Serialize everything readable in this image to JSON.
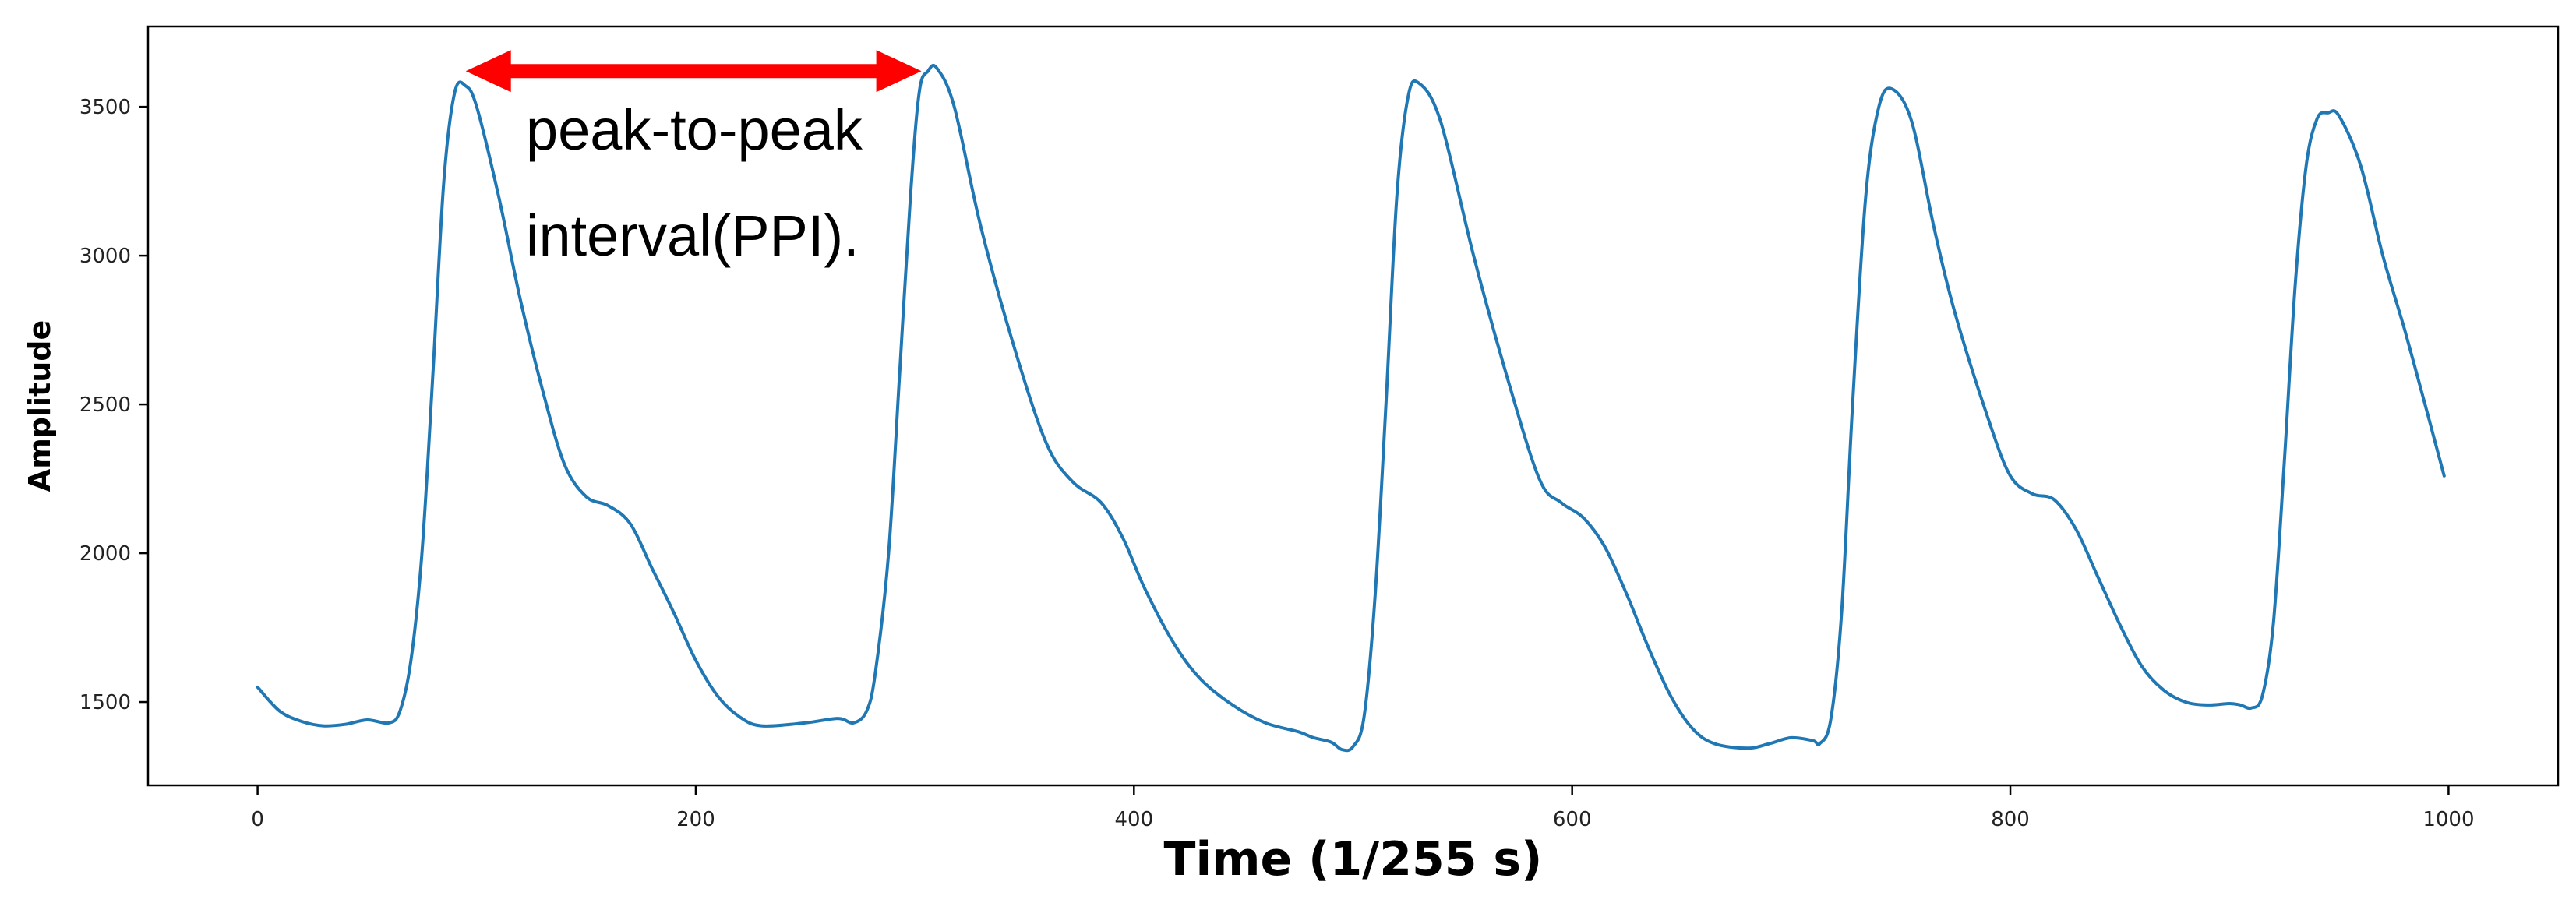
{
  "colors": {
    "series": "#1f77b4",
    "arrow": "#ff0000",
    "axes": "#000000",
    "background": "#ffffff"
  },
  "chart_data": {
    "type": "line",
    "title": "",
    "xlabel": "Time (1/255 s)",
    "ylabel": "Amplitude",
    "xlim": [
      -50,
      1050
    ],
    "ylim": [
      1220,
      3770
    ],
    "xticks": [
      0,
      200,
      400,
      600,
      800,
      1000
    ],
    "xtick_labels": [
      "0",
      "200",
      "400",
      "600",
      "800",
      "1000"
    ],
    "yticks": [
      1500,
      2000,
      2500,
      3000,
      3500
    ],
    "ytick_labels": [
      "1500",
      "2000",
      "2500",
      "3000",
      "3500"
    ],
    "grid": false,
    "legend": "none",
    "series": [
      {
        "points": [
          [
            0,
            1550
          ],
          [
            10,
            1470
          ],
          [
            20,
            1435
          ],
          [
            30,
            1420
          ],
          [
            40,
            1425
          ],
          [
            50,
            1440
          ],
          [
            60,
            1430
          ],
          [
            65,
            1470
          ],
          [
            70,
            1640
          ],
          [
            75,
            2000
          ],
          [
            80,
            2600
          ],
          [
            85,
            3250
          ],
          [
            90,
            3550
          ],
          [
            95,
            3570
          ],
          [
            100,
            3500
          ],
          [
            110,
            3200
          ],
          [
            120,
            2850
          ],
          [
            130,
            2550
          ],
          [
            140,
            2300
          ],
          [
            150,
            2190
          ],
          [
            160,
            2160
          ],
          [
            170,
            2100
          ],
          [
            180,
            1950
          ],
          [
            190,
            1800
          ],
          [
            200,
            1640
          ],
          [
            210,
            1520
          ],
          [
            220,
            1450
          ],
          [
            230,
            1420
          ],
          [
            250,
            1430
          ],
          [
            265,
            1445
          ],
          [
            272,
            1430
          ],
          [
            278,
            1470
          ],
          [
            282,
            1600
          ],
          [
            288,
            2000
          ],
          [
            293,
            2600
          ],
          [
            298,
            3200
          ],
          [
            302,
            3550
          ],
          [
            306,
            3620
          ],
          [
            310,
            3630
          ],
          [
            318,
            3500
          ],
          [
            330,
            3100
          ],
          [
            345,
            2700
          ],
          [
            360,
            2370
          ],
          [
            372,
            2240
          ],
          [
            385,
            2170
          ],
          [
            395,
            2050
          ],
          [
            405,
            1880
          ],
          [
            418,
            1700
          ],
          [
            430,
            1580
          ],
          [
            445,
            1490
          ],
          [
            460,
            1430
          ],
          [
            475,
            1400
          ],
          [
            482,
            1380
          ],
          [
            490,
            1365
          ],
          [
            495,
            1340
          ],
          [
            500,
            1350
          ],
          [
            505,
            1450
          ],
          [
            510,
            1850
          ],
          [
            515,
            2500
          ],
          [
            520,
            3200
          ],
          [
            525,
            3530
          ],
          [
            530,
            3580
          ],
          [
            540,
            3450
          ],
          [
            555,
            3000
          ],
          [
            570,
            2600
          ],
          [
            585,
            2250
          ],
          [
            595,
            2170
          ],
          [
            605,
            2120
          ],
          [
            615,
            2020
          ],
          [
            625,
            1860
          ],
          [
            635,
            1680
          ],
          [
            645,
            1520
          ],
          [
            655,
            1410
          ],
          [
            665,
            1360
          ],
          [
            680,
            1345
          ],
          [
            690,
            1360
          ],
          [
            700,
            1380
          ],
          [
            710,
            1370
          ],
          [
            713,
            1360
          ],
          [
            718,
            1440
          ],
          [
            723,
            1800
          ],
          [
            728,
            2500
          ],
          [
            734,
            3200
          ],
          [
            740,
            3500
          ],
          [
            746,
            3560
          ],
          [
            755,
            3450
          ],
          [
            765,
            3100
          ],
          [
            775,
            2800
          ],
          [
            790,
            2450
          ],
          [
            800,
            2260
          ],
          [
            810,
            2200
          ],
          [
            820,
            2180
          ],
          [
            830,
            2080
          ],
          [
            840,
            1920
          ],
          [
            850,
            1760
          ],
          [
            860,
            1620
          ],
          [
            870,
            1540
          ],
          [
            880,
            1500
          ],
          [
            890,
            1490
          ],
          [
            900,
            1495
          ],
          [
            905,
            1490
          ],
          [
            910,
            1480
          ],
          [
            915,
            1520
          ],
          [
            920,
            1760
          ],
          [
            925,
            2300
          ],
          [
            930,
            2900
          ],
          [
            935,
            3300
          ],
          [
            940,
            3460
          ],
          [
            945,
            3480
          ],
          [
            950,
            3470
          ],
          [
            960,
            3300
          ],
          [
            970,
            3000
          ],
          [
            980,
            2750
          ],
          [
            990,
            2480
          ],
          [
            998,
            2260
          ]
        ]
      }
    ],
    "annotations": [
      {
        "text": "peak-to-peak",
        "kind": "label"
      },
      {
        "text": "interval(PPI).",
        "kind": "label"
      },
      {
        "kind": "double-arrow",
        "from": [
          95,
          3620
        ],
        "to": [
          303,
          3620
        ],
        "color": "#ff0000"
      }
    ]
  }
}
